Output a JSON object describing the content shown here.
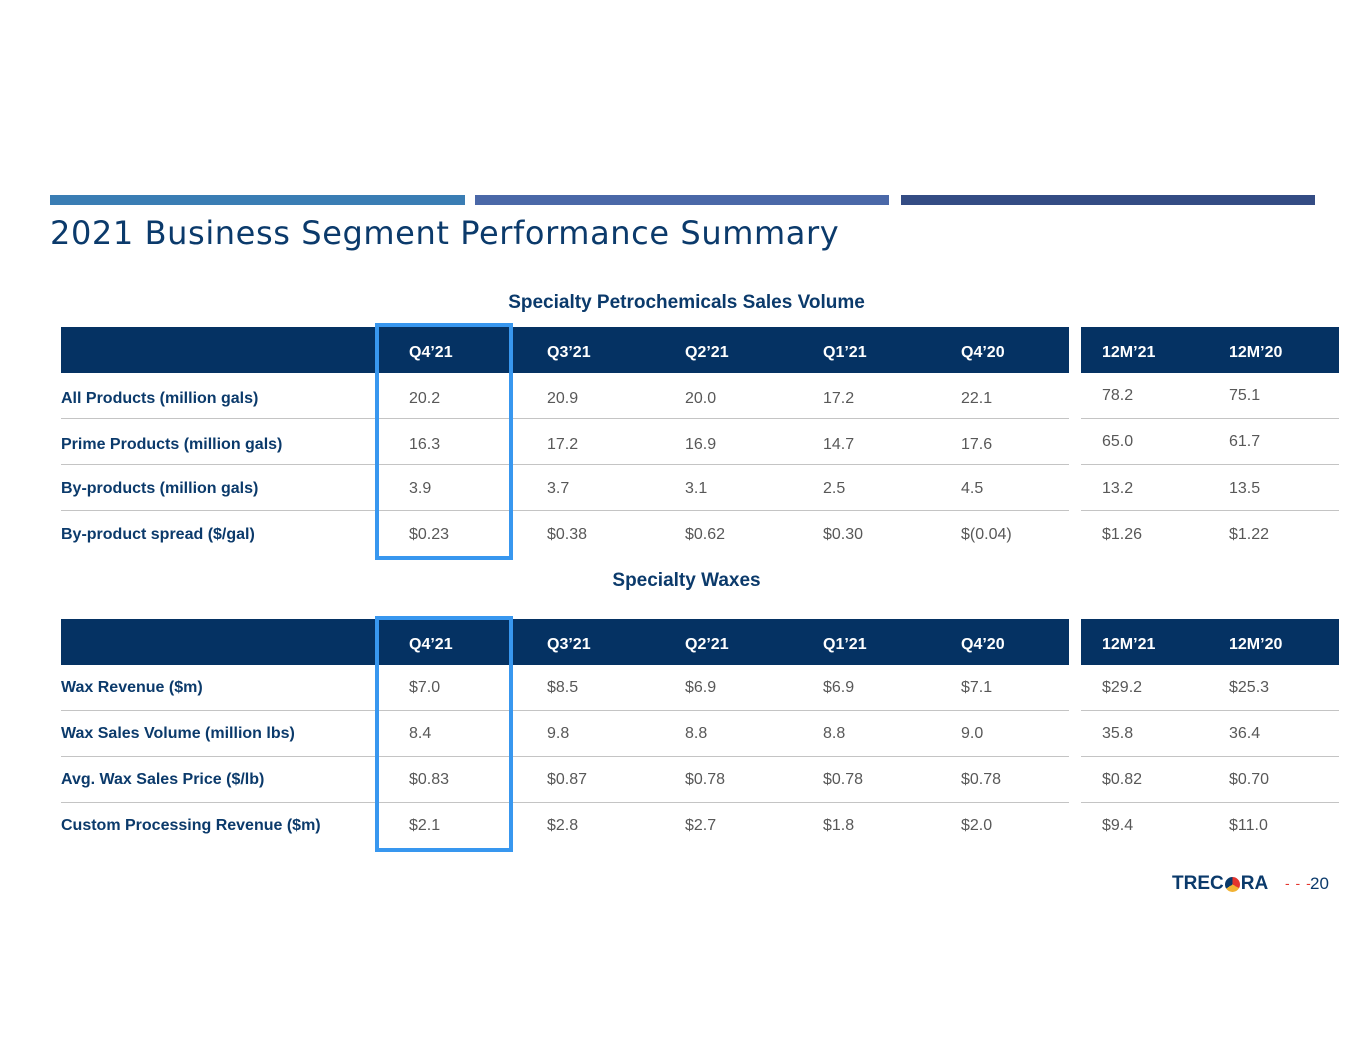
{
  "title": "2021 Business Segment Performance Summary",
  "sections": [
    {
      "title": "Specialty Petrochemicals Sales Volume",
      "quarter_headers": [
        "Q4’21",
        "Q3’21",
        "Q2’21",
        "Q1’21",
        "Q4’20"
      ],
      "annual_headers": [
        "12M’21",
        "12M’20"
      ],
      "rows": [
        {
          "label": "All Products (million gals)",
          "quarters": [
            "20.2",
            "20.9",
            "20.0",
            "17.2",
            "22.1"
          ],
          "annual": [
            "78.2",
            "75.1"
          ]
        },
        {
          "label": "Prime Products (million gals)",
          "quarters": [
            "16.3",
            "17.2",
            "16.9",
            "14.7",
            "17.6"
          ],
          "annual": [
            "65.0",
            "61.7"
          ]
        },
        {
          "label": "By-products (million gals)",
          "quarters": [
            "3.9",
            "3.7",
            "3.1",
            "2.5",
            "4.5"
          ],
          "annual": [
            "13.2",
            "13.5"
          ]
        },
        {
          "label": "By-product spread ($/gal)",
          "quarters": [
            "$0.23",
            "$0.38",
            "$0.62",
            "$0.30",
            "$(0.04)"
          ],
          "annual": [
            "$1.26",
            "$1.22"
          ]
        }
      ]
    },
    {
      "title": "Specialty Waxes",
      "quarter_headers": [
        "Q4’21",
        "Q3’21",
        "Q2’21",
        "Q1’21",
        "Q4’20"
      ],
      "annual_headers": [
        "12M’21",
        "12M’20"
      ],
      "rows": [
        {
          "label": "Wax Revenue ($m)",
          "quarters": [
            "$7.0",
            "$8.5",
            "$6.9",
            "$6.9",
            "$7.1"
          ],
          "annual": [
            "$29.2",
            "$25.3"
          ]
        },
        {
          "label": "Wax Sales Volume  (million lbs)",
          "quarters": [
            "8.4",
            "9.8",
            "8.8",
            "8.8",
            "9.0"
          ],
          "annual": [
            "35.8",
            "36.4"
          ]
        },
        {
          "label": "Avg. Wax Sales Price  ($/lb)",
          "quarters": [
            "$0.83",
            "$0.87",
            "$0.78",
            "$0.78",
            "$0.78"
          ],
          "annual": [
            "$0.82",
            "$0.70"
          ]
        },
        {
          "label": "Custom Processing  Revenue ($m)",
          "quarters": [
            "$2.1",
            "$2.8",
            "$2.7",
            "$1.8",
            "$2.0"
          ],
          "annual": [
            "$9.4",
            "$11.0"
          ]
        }
      ]
    }
  ],
  "footer": {
    "logo_left": "TREC",
    "logo_right": "RA",
    "logo_full": "TRECORA",
    "logo_colors": [
      "#e4352e",
      "#f2b233",
      "#0b3a6b"
    ],
    "page_number": "20"
  }
}
